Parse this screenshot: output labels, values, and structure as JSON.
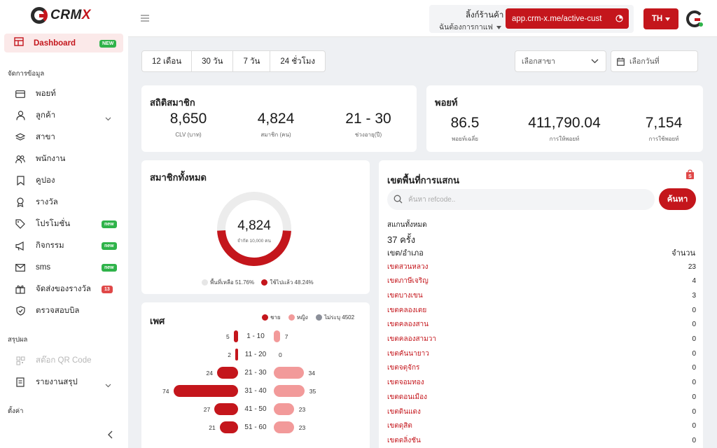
{
  "brand": {
    "name_prefix": "CRM",
    "name_suffix": "X"
  },
  "sidebar": {
    "active": {
      "label": "Dashboard",
      "badge": "NEW"
    },
    "section_data": "จัดการข้อมูล",
    "items": [
      {
        "label": "พอยท์",
        "icon": "credit-card-icon"
      },
      {
        "label": "ลูกค้า",
        "icon": "user-icon",
        "has_chevron": true
      },
      {
        "label": "สาขา",
        "icon": "layers-icon"
      },
      {
        "label": "พนักงาน",
        "icon": "users-icon"
      },
      {
        "label": "คูปอง",
        "icon": "bookmark-icon"
      },
      {
        "label": "รางวัล",
        "icon": "award-icon"
      },
      {
        "label": "โปรโมชั่น",
        "icon": "tag-icon",
        "badge": "new"
      },
      {
        "label": "กิจกรรม",
        "icon": "megaphone-icon",
        "badge": "new"
      },
      {
        "label": "sms",
        "icon": "mail-icon",
        "badge": "new"
      },
      {
        "label": "จัดส่งของรางวัล",
        "icon": "gift-icon",
        "badge": "13"
      },
      {
        "label": "ตรวจสอบบิล",
        "icon": "shield-check-icon"
      }
    ],
    "section_summary": "สรุปผล",
    "summary_items": [
      {
        "label": "สต๊อก QR Code",
        "icon": "qr-code-icon",
        "disabled": true
      },
      {
        "label": "รายงานสรุป",
        "icon": "report-icon",
        "has_chevron": true
      }
    ],
    "section_settings": "ตั้งค่า"
  },
  "header": {
    "shop_title": "ลิ้งก์ร้านค้า",
    "shop_sub": "ฉันต้องการกาแฟ",
    "shop_link": "app.crm-x.me/active-cust",
    "lang": "TH"
  },
  "filters": {
    "ranges": [
      "12 เดือน",
      "30 วัน",
      "7 วัน",
      "24 ชั่วโมง"
    ],
    "branch_placeholder": "เลือกสาขา",
    "date_placeholder": "เลือกวันที่"
  },
  "member_stats": {
    "title": "สถิติสมาชิก",
    "items": [
      {
        "value": "8,650",
        "label": "CLV (บาท)"
      },
      {
        "value": "4,824",
        "label": "สมาชิก (คน)"
      },
      {
        "value": "21 - 30",
        "label": "ช่วงอายุ(ปี)"
      }
    ]
  },
  "point_stats": {
    "title": "พอยท์",
    "items": [
      {
        "value": "86.5",
        "label": "พอยท์เฉลี่ย"
      },
      {
        "value": "411,790.04",
        "label": "การให้พอยท์"
      },
      {
        "value": "7,154",
        "label": "การใช้พอยท์"
      }
    ]
  },
  "all_members": {
    "title": "สมาชิกทั้งหมด",
    "center_value": "4,824",
    "center_sub": "จำกัด 10,000 คน",
    "used_fraction": 0.4824,
    "legend_remaining": "พื้นที่เหลือ 51.76%",
    "legend_used": "ใช้ไปแล้ว 48.24%",
    "colors": {
      "used": "#c4161c",
      "remaining": "#ececec"
    }
  },
  "gender": {
    "title": "เพศ",
    "legend_male": "ชาย",
    "legend_female": "หญิง",
    "legend_unknown": "ไม่ระบุ 4502",
    "colors": {
      "male": "#c4161c",
      "female": "#f29a9a",
      "unknown": "#8b8f99"
    },
    "rows": [
      {
        "range": "1 - 10",
        "male": 5,
        "female": 7
      },
      {
        "range": "11 - 20",
        "male": 2,
        "female": 0
      },
      {
        "range": "21 - 30",
        "male": 24,
        "female": 34
      },
      {
        "range": "31 - 40",
        "male": 74,
        "female": 35
      },
      {
        "range": "41 - 50",
        "male": 27,
        "female": 23
      },
      {
        "range": "51 - 60",
        "male": 21,
        "female": 23
      }
    ]
  },
  "scan_area": {
    "title": "เขตพื้นที่การแสกน",
    "search_placeholder": "ค้นหา refcode..",
    "search_button": "ค้นหา",
    "total_label": "สแกนทั้งหมด",
    "total_value": "37 ครั้ง",
    "col_district": "เขต/อำเภอ",
    "col_count": "จำนวน",
    "rows": [
      {
        "name": "เขตสวนหลวง",
        "count": "23"
      },
      {
        "name": "เขตภาษีเจริญ",
        "count": "4"
      },
      {
        "name": "เขตบางเขน",
        "count": "3"
      },
      {
        "name": "เขตคลองเตย",
        "count": "0"
      },
      {
        "name": "เขตคลองสาน",
        "count": "0"
      },
      {
        "name": "เขตคลองสามวา",
        "count": "0"
      },
      {
        "name": "เขตคันนายาว",
        "count": "0"
      },
      {
        "name": "เขตจตุจักร",
        "count": "0"
      },
      {
        "name": "เขตจอมทอง",
        "count": "0"
      },
      {
        "name": "เขตดอนเมือง",
        "count": "0"
      },
      {
        "name": "เขตดินแดง",
        "count": "0"
      },
      {
        "name": "เขตดุสิต",
        "count": "0"
      },
      {
        "name": "เขตตลิ่งชัน",
        "count": "0"
      }
    ]
  }
}
